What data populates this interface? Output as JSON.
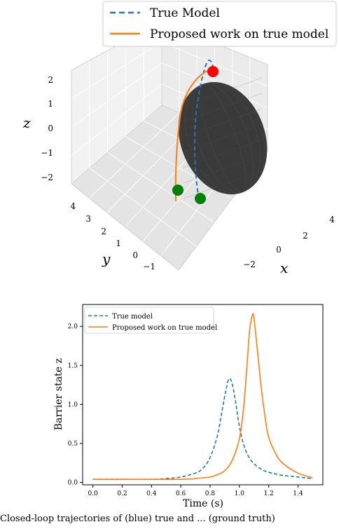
{
  "top_panel": {
    "legend": {
      "true_model": "True Model",
      "proposed": "Proposed work on true model"
    },
    "axis_labels": {
      "x": "x",
      "y": "y",
      "z": "z"
    },
    "z_ticks": [
      "2",
      "1",
      "0",
      "−1",
      "−2"
    ],
    "y_ticks": [
      "4",
      "3",
      "2",
      "1",
      "0",
      "−1"
    ],
    "x_ticks": [
      "−2",
      "0",
      "2",
      "4"
    ]
  },
  "caption": "Closed-loop trajectories of (blue) true and ... (ground truth)",
  "chart_data": [
    {
      "type": "line",
      "title": "",
      "xlabel": "x",
      "ylabel": "y",
      "zlabel": "z",
      "projection": "3d",
      "series": [
        {
          "name": "True Model",
          "style": "dashed",
          "color": "#1f77b4"
        },
        {
          "name": "Proposed work on true model",
          "style": "solid",
          "color": "#ff7f0e"
        }
      ],
      "markers": [
        {
          "kind": "goal",
          "color": "#ff0000"
        },
        {
          "kind": "start",
          "color": "#008000"
        },
        {
          "kind": "start",
          "color": "#008000"
        }
      ],
      "obstacle": {
        "shape": "ellipse",
        "color": "#333333"
      },
      "zlim": [
        -2,
        2
      ],
      "ylim": [
        -1,
        4
      ],
      "xlim": [
        -2,
        4
      ]
    },
    {
      "type": "line",
      "title": "",
      "xlabel": "Time (s)",
      "ylabel": "Barrier state z",
      "xlim": [
        -0.07,
        1.57
      ],
      "ylim": [
        -0.03,
        2.28
      ],
      "grid": false,
      "legend_position": "top-left",
      "x_ticks": [
        "0.0",
        "0.2",
        "0.4",
        "0.6",
        "0.8",
        "1.0",
        "1.2",
        "1.4"
      ],
      "y_ticks": [
        "0.0",
        "0.5",
        "1.0",
        "1.5",
        "2.0"
      ],
      "series": [
        {
          "name": "True model",
          "style": "dashed",
          "color": "#1f77b4",
          "x": [
            0.0,
            0.2,
            0.4,
            0.5,
            0.6,
            0.7,
            0.75,
            0.8,
            0.85,
            0.88,
            0.91,
            0.93,
            0.95,
            0.97,
            1.0,
            1.03,
            1.06,
            1.1,
            1.15,
            1.2,
            1.3,
            1.4,
            1.5
          ],
          "values": [
            0.04,
            0.04,
            0.04,
            0.05,
            0.07,
            0.12,
            0.18,
            0.32,
            0.6,
            0.9,
            1.2,
            1.33,
            1.27,
            1.08,
            0.72,
            0.48,
            0.34,
            0.24,
            0.17,
            0.13,
            0.09,
            0.07,
            0.05
          ]
        },
        {
          "name": "Proposed work on true model",
          "style": "solid",
          "color": "#ff7f0e",
          "x": [
            0.0,
            0.2,
            0.4,
            0.6,
            0.7,
            0.8,
            0.85,
            0.9,
            0.95,
            1.0,
            1.03,
            1.05,
            1.07,
            1.09,
            1.1,
            1.12,
            1.15,
            1.18,
            1.2,
            1.25,
            1.3,
            1.4,
            1.5
          ],
          "values": [
            0.04,
            0.04,
            0.04,
            0.04,
            0.05,
            0.07,
            0.1,
            0.15,
            0.28,
            0.56,
            0.98,
            1.45,
            1.95,
            2.15,
            2.1,
            1.75,
            1.2,
            0.78,
            0.58,
            0.36,
            0.24,
            0.12,
            0.06
          ]
        }
      ]
    }
  ]
}
